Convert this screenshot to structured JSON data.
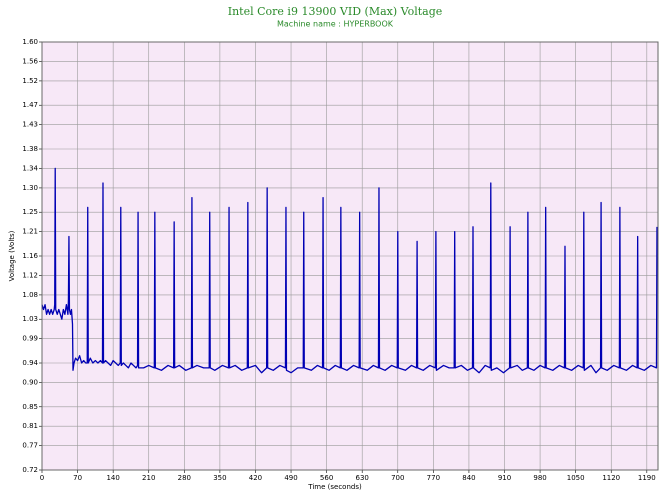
{
  "chart_data": {
    "type": "line",
    "title": "Intel Core i9 13900 VID (Max) Voltage",
    "subtitle": "Machine name : HYPERBOOK",
    "x_label": "Time (seconds)",
    "y_label": "Voltage (Volts)",
    "color": "#0000b4",
    "background": "#f7e8f7",
    "grid": true,
    "xlim": [
      0,
      1212
    ],
    "ylim": [
      0.72,
      1.6
    ],
    "xticks": [
      0,
      70,
      140,
      210,
      280,
      350,
      420,
      490,
      560,
      630,
      700,
      770,
      840,
      910,
      980,
      1050,
      1120,
      1190
    ],
    "yticks": [
      0.72,
      0.77,
      0.81,
      0.85,
      {
        "value": 0.9,
        "label": "0.90"
      },
      0.94,
      0.99,
      1.03,
      1.08,
      1.12,
      1.16,
      1.21,
      1.25,
      {
        "value": 1.3,
        "label": "1.30"
      },
      1.34,
      1.38,
      1.43,
      1.47,
      1.52,
      1.56,
      {
        "value": 1.6,
        "label": "1.60"
      }
    ],
    "x": [
      0,
      3,
      6,
      9,
      12,
      15,
      18,
      21,
      24,
      25,
      26,
      27,
      30,
      33,
      36,
      39,
      42,
      45,
      48,
      51,
      52,
      53,
      54,
      56,
      58,
      60,
      61,
      63,
      66,
      70,
      74,
      78,
      82,
      86,
      89,
      90,
      91,
      95,
      100,
      105,
      110,
      115,
      119,
      120,
      121,
      125,
      130,
      135,
      140,
      145,
      150,
      154,
      155,
      156,
      160,
      165,
      170,
      175,
      180,
      185,
      188,
      189,
      190,
      200,
      210,
      221,
      222,
      223,
      235,
      248,
      259,
      260,
      261,
      270,
      283,
      294,
      295,
      296,
      305,
      318,
      329,
      330,
      331,
      340,
      355,
      367,
      368,
      369,
      380,
      393,
      404,
      405,
      406,
      420,
      432,
      442,
      443,
      444,
      455,
      468,
      479,
      480,
      481,
      490,
      503,
      514,
      515,
      516,
      530,
      542,
      552,
      553,
      554,
      565,
      577,
      587,
      588,
      589,
      600,
      613,
      624,
      625,
      626,
      640,
      652,
      662,
      663,
      664,
      675,
      688,
      699,
      700,
      701,
      715,
      727,
      737,
      738,
      739,
      750,
      763,
      774,
      775,
      776,
      790,
      801,
      811,
      812,
      813,
      825,
      837,
      847,
      848,
      849,
      860,
      872,
      882,
      883,
      884,
      895,
      908,
      920,
      921,
      922,
      935,
      945,
      955,
      956,
      957,
      968,
      980,
      990,
      991,
      992,
      1005,
      1018,
      1028,
      1029,
      1030,
      1042,
      1055,
      1065,
      1066,
      1067,
      1080,
      1090,
      1099,
      1100,
      1101,
      1112,
      1125,
      1136,
      1137,
      1138,
      1150,
      1162,
      1171,
      1172,
      1173,
      1185,
      1198,
      1209,
      1210
    ],
    "values": [
      1.06,
      1.05,
      1.06,
      1.04,
      1.05,
      1.04,
      1.05,
      1.04,
      1.05,
      1.06,
      1.34,
      1.05,
      1.04,
      1.05,
      1.04,
      1.03,
      1.05,
      1.04,
      1.06,
      1.04,
      1.07,
      1.2,
      1.05,
      1.04,
      1.05,
      1.02,
      0.925,
      0.94,
      0.95,
      0.945,
      0.955,
      0.94,
      0.945,
      0.94,
      0.94,
      1.26,
      0.94,
      0.95,
      0.94,
      0.945,
      0.94,
      0.945,
      0.94,
      1.31,
      0.94,
      0.945,
      0.94,
      0.935,
      0.945,
      0.94,
      0.935,
      0.94,
      1.26,
      0.935,
      0.94,
      0.935,
      0.93,
      0.94,
      0.935,
      0.93,
      0.935,
      1.25,
      0.93,
      0.93,
      0.935,
      0.93,
      1.25,
      0.93,
      0.925,
      0.935,
      0.93,
      1.23,
      0.93,
      0.935,
      0.925,
      0.93,
      1.28,
      0.93,
      0.935,
      0.93,
      0.93,
      1.25,
      0.93,
      0.925,
      0.935,
      0.93,
      1.26,
      0.93,
      0.935,
      0.925,
      0.93,
      1.27,
      0.93,
      0.935,
      0.92,
      0.93,
      1.3,
      0.93,
      0.925,
      0.935,
      0.93,
      1.26,
      0.925,
      0.92,
      0.93,
      0.93,
      1.25,
      0.93,
      0.925,
      0.935,
      0.93,
      1.28,
      0.93,
      0.925,
      0.935,
      0.93,
      1.26,
      0.93,
      0.925,
      0.935,
      0.93,
      1.25,
      0.93,
      0.925,
      0.935,
      0.93,
      1.3,
      0.93,
      0.925,
      0.935,
      0.93,
      1.21,
      0.93,
      0.925,
      0.935,
      0.93,
      1.19,
      0.93,
      0.925,
      0.935,
      0.93,
      1.21,
      0.925,
      0.935,
      0.93,
      0.93,
      1.21,
      0.93,
      0.935,
      0.925,
      0.93,
      1.22,
      0.93,
      0.92,
      0.935,
      0.93,
      1.31,
      0.925,
      0.93,
      0.92,
      0.93,
      1.22,
      0.93,
      0.935,
      0.925,
      0.93,
      1.25,
      0.93,
      0.925,
      0.935,
      0.93,
      1.26,
      0.93,
      0.925,
      0.935,
      0.93,
      1.18,
      0.93,
      0.925,
      0.935,
      0.93,
      1.25,
      0.925,
      0.935,
      0.92,
      0.93,
      1.27,
      0.93,
      0.925,
      0.935,
      0.93,
      1.26,
      0.93,
      0.925,
      0.935,
      0.93,
      1.2,
      0.93,
      0.925,
      0.935,
      0.93,
      1.22
    ]
  }
}
